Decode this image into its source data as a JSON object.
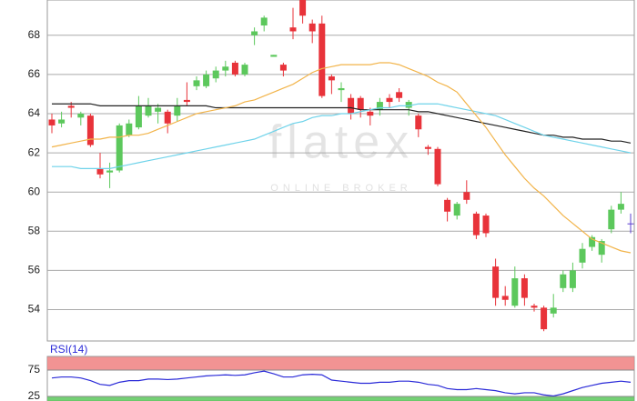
{
  "watermark": {
    "logo": "flatex",
    "tagline": "ONLINE BROKER"
  },
  "chart_data": [
    {
      "type": "candlestick",
      "categories": [
        null,
        null,
        null,
        null,
        null,
        null,
        null,
        null,
        null,
        null,
        null,
        null,
        null,
        null,
        null,
        null,
        null,
        null,
        null,
        null,
        null,
        null,
        null,
        null,
        null,
        null,
        null,
        null,
        null,
        null,
        null,
        null,
        null,
        null,
        null,
        null,
        null,
        null,
        null,
        null,
        null,
        null,
        null,
        null,
        null,
        null,
        null,
        null,
        null,
        null,
        null,
        null,
        null,
        null,
        null,
        null,
        null,
        null,
        null,
        null,
        null
      ],
      "open": [
        63.7,
        63.5,
        64.4,
        63.8,
        63.9,
        61.2,
        61.0,
        61.1,
        62.9,
        63.3,
        63.9,
        64.1,
        64.1,
        63.9,
        64.7,
        65.4,
        65.4,
        65.8,
        66.2,
        66.6,
        66.0,
        68.0,
        68.5,
        66.9,
        66.5,
        68.4,
        69.8,
        68.6,
        68.6,
        65.9,
        65.2,
        64.8,
        64.8,
        64.1,
        64.2,
        64.8,
        65.1,
        64.3,
        63.9,
        62.3,
        62.2,
        59.6,
        58.8,
        60.0,
        58.9,
        58.8,
        56.2,
        54.7,
        54.2,
        55.6,
        54.2,
        54.1,
        53.8,
        55.1,
        55.1,
        56.4,
        57.2,
        56.8,
        58.1,
        59.1,
        58.4
      ],
      "high": [
        64.0,
        64.1,
        64.6,
        64.1,
        64.0,
        62.0,
        61.5,
        63.5,
        63.7,
        64.9,
        64.8,
        64.5,
        64.2,
        64.8,
        65.6,
        65.9,
        66.2,
        66.4,
        66.7,
        66.7,
        66.6,
        68.4,
        69.0,
        67.0,
        66.6,
        69.4,
        69.8,
        68.8,
        69.0,
        66.0,
        65.6,
        65.0,
        64.9,
        64.3,
        64.8,
        65.0,
        65.3,
        64.7,
        64.0,
        62.4,
        62.3,
        59.7,
        59.5,
        60.6,
        59.0,
        58.9,
        56.6,
        55.2,
        56.2,
        55.8,
        54.3,
        54.2,
        54.8,
        56.0,
        56.4,
        57.4,
        57.8,
        57.6,
        59.3,
        60.0,
        58.9
      ],
      "low": [
        63.0,
        63.3,
        63.8,
        63.4,
        62.3,
        60.7,
        60.2,
        61.0,
        62.8,
        63.2,
        63.8,
        63.5,
        63.0,
        63.6,
        64.4,
        65.2,
        65.3,
        65.6,
        65.9,
        65.9,
        65.9,
        67.5,
        68.2,
        66.9,
        65.9,
        67.8,
        68.6,
        67.6,
        64.8,
        65.0,
        64.6,
        63.7,
        63.8,
        63.4,
        63.9,
        64.3,
        64.6,
        63.9,
        62.8,
        61.9,
        60.3,
        58.5,
        58.6,
        59.4,
        57.6,
        57.7,
        54.2,
        54.2,
        54.1,
        54.2,
        53.9,
        52.9,
        53.6,
        54.9,
        54.9,
        56.1,
        57.0,
        56.4,
        57.9,
        58.9,
        57.9
      ],
      "close": [
        63.4,
        63.7,
        64.3,
        64.0,
        62.4,
        60.9,
        61.1,
        63.4,
        63.5,
        64.4,
        64.4,
        64.3,
        63.5,
        64.4,
        64.6,
        65.7,
        66.0,
        66.2,
        66.4,
        66.0,
        66.5,
        68.2,
        68.9,
        67.0,
        66.2,
        68.2,
        69.0,
        68.2,
        64.9,
        65.7,
        65.3,
        64.0,
        64.2,
        63.9,
        64.6,
        64.6,
        64.8,
        64.6,
        63.2,
        62.2,
        60.4,
        59.0,
        59.4,
        59.6,
        57.8,
        57.9,
        54.6,
        54.5,
        55.6,
        54.6,
        54.1,
        53.0,
        54.1,
        55.8,
        56.0,
        57.1,
        57.7,
        57.5,
        59.1,
        59.4,
        58.4
      ],
      "up_color": "#5cc85c",
      "down_color": "#e8333a",
      "doji_color": "#5b3fd1",
      "lines": [
        {
          "color": "#222222",
          "values": [
            64.5,
            64.5,
            64.5,
            64.5,
            64.5,
            64.4,
            64.4,
            64.4,
            64.4,
            64.4,
            64.4,
            64.4,
            64.4,
            64.4,
            64.4,
            64.4,
            64.4,
            64.3,
            64.3,
            64.3,
            64.3,
            64.3,
            64.3,
            64.3,
            64.3,
            64.3,
            64.3,
            64.3,
            64.3,
            64.3,
            64.3,
            64.3,
            64.2,
            64.2,
            64.2,
            64.2,
            64.2,
            64.2,
            64.1,
            64.1,
            64.0,
            63.9,
            63.8,
            63.7,
            63.6,
            63.5,
            63.4,
            63.3,
            63.2,
            63.1,
            63.0,
            62.9,
            62.9,
            62.8,
            62.8,
            62.7,
            62.7,
            62.7,
            62.6,
            62.6,
            62.5
          ]
        },
        {
          "color": "#6fd3ea",
          "values": [
            61.3,
            61.3,
            61.3,
            61.2,
            61.2,
            61.2,
            61.2,
            61.3,
            61.4,
            61.5,
            61.6,
            61.7,
            61.8,
            61.9,
            62.0,
            62.1,
            62.2,
            62.3,
            62.4,
            62.5,
            62.6,
            62.7,
            62.9,
            63.1,
            63.3,
            63.5,
            63.6,
            63.8,
            63.9,
            63.9,
            64.0,
            64.0,
            64.1,
            64.2,
            64.3,
            64.3,
            64.4,
            64.4,
            64.5,
            64.5,
            64.5,
            64.4,
            64.3,
            64.2,
            64.1,
            64.0,
            63.9,
            63.7,
            63.5,
            63.3,
            63.1,
            62.9,
            62.8,
            62.7,
            62.6,
            62.5,
            62.4,
            62.3,
            62.2,
            62.1,
            62.0
          ]
        },
        {
          "color": "#f2b44a",
          "values": [
            62.3,
            62.4,
            62.5,
            62.6,
            62.7,
            62.7,
            62.8,
            62.8,
            62.9,
            62.9,
            63.0,
            63.2,
            63.4,
            63.6,
            63.8,
            64.0,
            64.1,
            64.2,
            64.3,
            64.4,
            64.6,
            64.7,
            64.9,
            65.1,
            65.3,
            65.5,
            65.8,
            66.1,
            66.3,
            66.4,
            66.5,
            66.5,
            66.5,
            66.5,
            66.6,
            66.6,
            66.5,
            66.3,
            66.1,
            65.9,
            65.6,
            65.4,
            65.1,
            64.5,
            63.9,
            63.3,
            62.6,
            61.9,
            61.3,
            60.7,
            60.2,
            59.8,
            59.3,
            58.8,
            58.4,
            58.0,
            57.6,
            57.4,
            57.2,
            57.0,
            56.9
          ]
        }
      ],
      "ylim": [
        52.4,
        69.8
      ],
      "yticks": [
        54,
        56,
        58,
        60,
        62,
        64,
        66,
        68
      ],
      "grid": true
    },
    {
      "type": "line",
      "title": "RSI(14)",
      "color": "#2a2ad8",
      "values": [
        60,
        62,
        62,
        60,
        55,
        48,
        46,
        52,
        55,
        55,
        58,
        58,
        57,
        58,
        60,
        62,
        64,
        65,
        66,
        65,
        66,
        70,
        73,
        68,
        62,
        62,
        66,
        67,
        66,
        56,
        54,
        52,
        50,
        50,
        52,
        52,
        54,
        54,
        52,
        48,
        46,
        40,
        38,
        38,
        40,
        38,
        36,
        32,
        30,
        32,
        32,
        28,
        26,
        30,
        36,
        42,
        46,
        50,
        52,
        54,
        52
      ],
      "ylim": [
        16.4,
        100
      ],
      "yticks": [
        25,
        75
      ],
      "grid": true,
      "band_colors": [
        "#5cc85c",
        "#f08080"
      ]
    }
  ]
}
